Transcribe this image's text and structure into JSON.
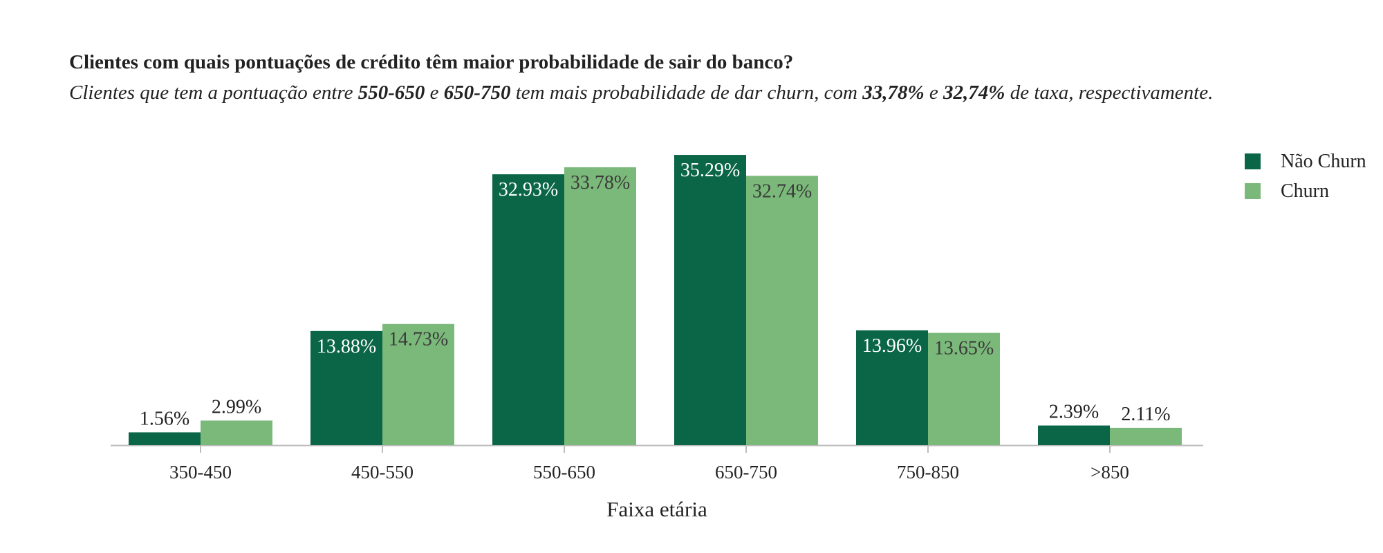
{
  "chart_data": {
    "type": "bar",
    "title": "Clientes com quais pontuações de crédito têm maior probabilidade de sair do banco?",
    "subtitle": {
      "t1": "Clientes que tem a pontuação entre ",
      "b1": "550-650",
      "t2": " e ",
      "b2": "650-750",
      "t3": " tem mais probabilidade de dar churn, com ",
      "b3": "33,78%",
      "t4": " e ",
      "b4": "32,74%",
      "t5": " de taxa, respectivamente."
    },
    "categories": [
      "350-450",
      "450-550",
      "550-650",
      "650-750",
      "750-850",
      ">850"
    ],
    "series": [
      {
        "name": "Não Churn",
        "color": "#0b6647",
        "values": [
          1.56,
          13.88,
          32.93,
          35.29,
          13.96,
          2.39
        ],
        "labels": [
          "1.56%",
          "13.88%",
          "32.93%",
          "35.29%",
          "13.96%",
          "2.39%"
        ]
      },
      {
        "name": "Churn",
        "color": "#7ab97a",
        "values": [
          2.99,
          14.73,
          33.78,
          32.74,
          13.65,
          2.11
        ],
        "labels": [
          "2.99%",
          "14.73%",
          "33.78%",
          "32.74%",
          "13.65%",
          "2.11%"
        ]
      }
    ],
    "xlabel": "Faixa etária",
    "ylabel": "",
    "ylim": [
      0,
      36
    ],
    "grid": false,
    "legend": "top-right"
  }
}
